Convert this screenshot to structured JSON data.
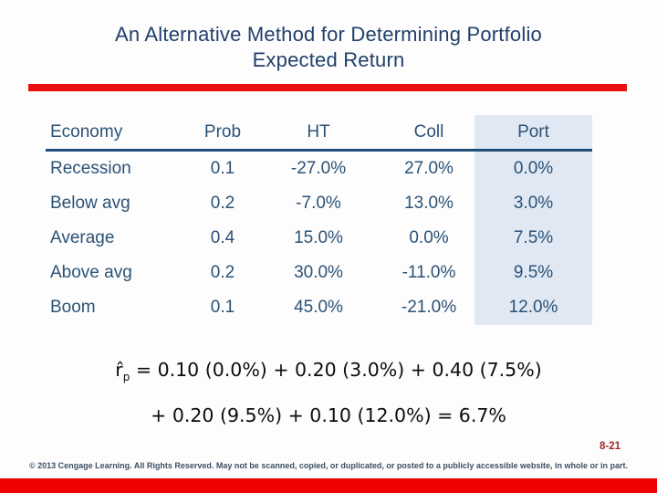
{
  "slide": {
    "title": {
      "line1": "An Alternative Method for Determining Portfolio",
      "line2": "Expected Return"
    }
  },
  "table": {
    "columns": [
      "Economy",
      "Prob",
      "HT",
      "Coll",
      "Port"
    ],
    "highlighted_column": "Port",
    "rows": [
      [
        "Recession",
        "0.1",
        "-27.0%",
        "27.0%",
        "0.0%"
      ],
      [
        "Below avg",
        "0.2",
        "-7.0%",
        "13.0%",
        "3.0%"
      ],
      [
        "Average",
        "0.4",
        "15.0%",
        "0.0%",
        "7.5%"
      ],
      [
        "Above avg",
        "0.2",
        "30.0%",
        "-11.0%",
        "9.5%"
      ],
      [
        "Boom",
        "0.1",
        "45.0%",
        "-21.0%",
        "12.0%"
      ]
    ]
  },
  "formula": {
    "symbol": "r̂",
    "subscript": "p",
    "rhs_line1": " = 0.10 (0.0%) + 0.20 (3.0%) + 0.40 (7.5%)",
    "line2": "+ 0.20 (9.5%) + 0.10 (12.0%) = 6.7%",
    "result": "6.7%"
  },
  "footer": {
    "page_number": "8-21",
    "copyright": "© 2013 Cengage Learning. All Rights Reserved. May not be scanned, copied, or duplicated, or posted to a publicly accessible website, in whole or in part."
  },
  "colors": {
    "title_text": "#21406B",
    "table_text": "#2B5277",
    "header_rule": "#1F4E79",
    "port_highlight": "#DFE8F3",
    "accent_red": "#EC0E0E",
    "page_number": "#9E2A25",
    "footer_text": "#3C4F63"
  }
}
